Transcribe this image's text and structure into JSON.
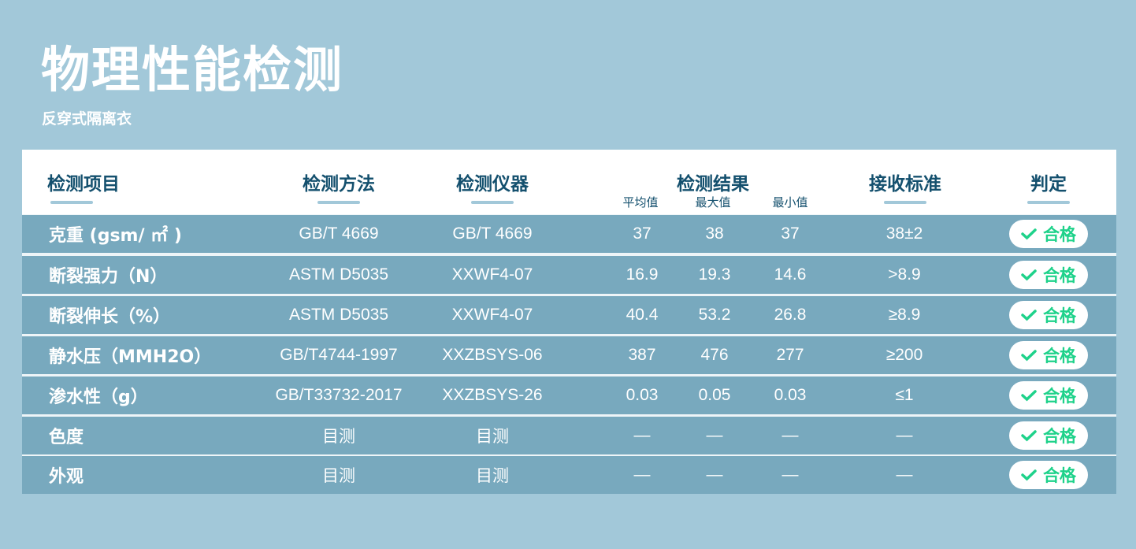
{
  "title": "物理性能检测",
  "subtitle": "反穿式隔离衣",
  "headers": {
    "item": "检测项目",
    "method": "检测方法",
    "instrument": "检测仪器",
    "result": "检测结果",
    "avg": "平均值",
    "max": "最大值",
    "min": "最小值",
    "standard": "接收标准",
    "verdict": "判定"
  },
  "rows": [
    {
      "item": "克重 (gsm/ ㎡ )",
      "method": "GB/T 4669",
      "instrument": "GB/T 4669",
      "avg": "37",
      "max": "38",
      "min": "37",
      "standard": "38±2",
      "verdict": "合格"
    },
    {
      "item": "断裂强力（N）",
      "method": "ASTM D5035",
      "instrument": "XXWF4-07",
      "avg": "16.9",
      "max": "19.3",
      "min": "14.6",
      "standard": ">8.9",
      "verdict": "合格"
    },
    {
      "item": "断裂伸长（%）",
      "method": "ASTM D5035",
      "instrument": "XXWF4-07",
      "avg": "40.4",
      "max": "53.2",
      "min": "26.8",
      "standard": "≥8.9",
      "verdict": "合格"
    },
    {
      "item": "静水压（MMH2O）",
      "method": "GB/T4744-1997",
      "instrument": "XXZBSYS-06",
      "avg": "387",
      "max": "476",
      "min": "277",
      "standard": "≥200",
      "verdict": "合格"
    },
    {
      "item": "渗水性（g）",
      "method": "GB/T33732-2017",
      "instrument": "XXZBSYS-26",
      "avg": "0.03",
      "max": "0.05",
      "min": "0.03",
      "standard": "≤1",
      "verdict": "合格"
    },
    {
      "item": "色度",
      "method": "目测",
      "instrument": "目测",
      "avg": "—",
      "max": "—",
      "min": "—",
      "standard": "—",
      "verdict": "合格"
    },
    {
      "item": "外观",
      "method": "目测",
      "instrument": "目测",
      "avg": "—",
      "max": "—",
      "min": "—",
      "standard": "—",
      "verdict": "合格"
    }
  ],
  "colors": {
    "background": "#a2c8d9",
    "row": "#78a9be",
    "header_text": "#14506e",
    "pass": "#1ed28a"
  },
  "icons": {
    "verdict": "check-icon"
  }
}
